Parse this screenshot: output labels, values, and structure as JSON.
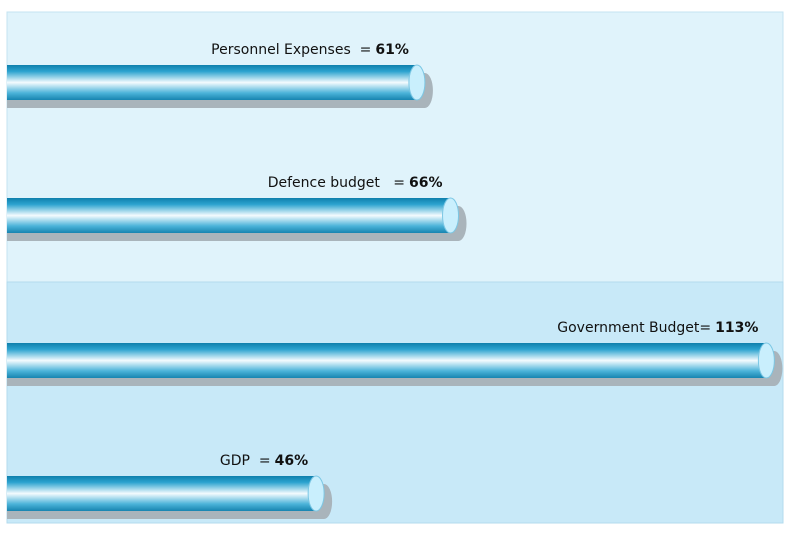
{
  "chart_data": {
    "type": "bar",
    "orientation": "horizontal",
    "categories": [
      "Personnel Expenses  =",
      "Defence budget   =",
      "Government Budget=",
      "GDP  ="
    ],
    "values": [
      61,
      66,
      113,
      46
    ],
    "value_labels": [
      "61%",
      "66%",
      "113%",
      "46%"
    ],
    "color": "#1a8fbc"
  }
}
